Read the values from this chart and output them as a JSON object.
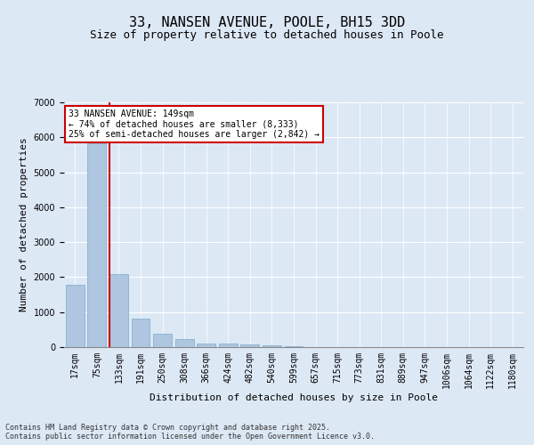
{
  "title": "33, NANSEN AVENUE, POOLE, BH15 3DD",
  "subtitle": "Size of property relative to detached houses in Poole",
  "xlabel": "Distribution of detached houses by size in Poole",
  "ylabel": "Number of detached properties",
  "categories": [
    "17sqm",
    "75sqm",
    "133sqm",
    "191sqm",
    "250sqm",
    "308sqm",
    "366sqm",
    "424sqm",
    "482sqm",
    "540sqm",
    "599sqm",
    "657sqm",
    "715sqm",
    "773sqm",
    "831sqm",
    "889sqm",
    "947sqm",
    "1006sqm",
    "1064sqm",
    "1122sqm",
    "1180sqm"
  ],
  "values": [
    1780,
    5820,
    2090,
    820,
    380,
    220,
    100,
    95,
    70,
    55,
    35,
    0,
    0,
    0,
    0,
    0,
    0,
    0,
    0,
    0,
    0
  ],
  "bar_color": "#aec6e0",
  "bar_edge_color": "#7aaac8",
  "vline_color": "#cc0000",
  "vline_x_index": 2,
  "annotation_text": "33 NANSEN AVENUE: 149sqm\n← 74% of detached houses are smaller (8,333)\n25% of semi-detached houses are larger (2,842) →",
  "annotation_box_color": "#ffffff",
  "annotation_box_edge": "#cc0000",
  "ylim": [
    0,
    7000
  ],
  "yticks": [
    0,
    1000,
    2000,
    3000,
    4000,
    5000,
    6000,
    7000
  ],
  "bg_color": "#dde8f5",
  "footer_line1": "Contains HM Land Registry data © Crown copyright and database right 2025.",
  "footer_line2": "Contains public sector information licensed under the Open Government Licence v3.0.",
  "title_fontsize": 11,
  "subtitle_fontsize": 9,
  "xlabel_fontsize": 8,
  "ylabel_fontsize": 8,
  "tick_fontsize": 7,
  "annotation_fontsize": 7,
  "footer_fontsize": 6
}
